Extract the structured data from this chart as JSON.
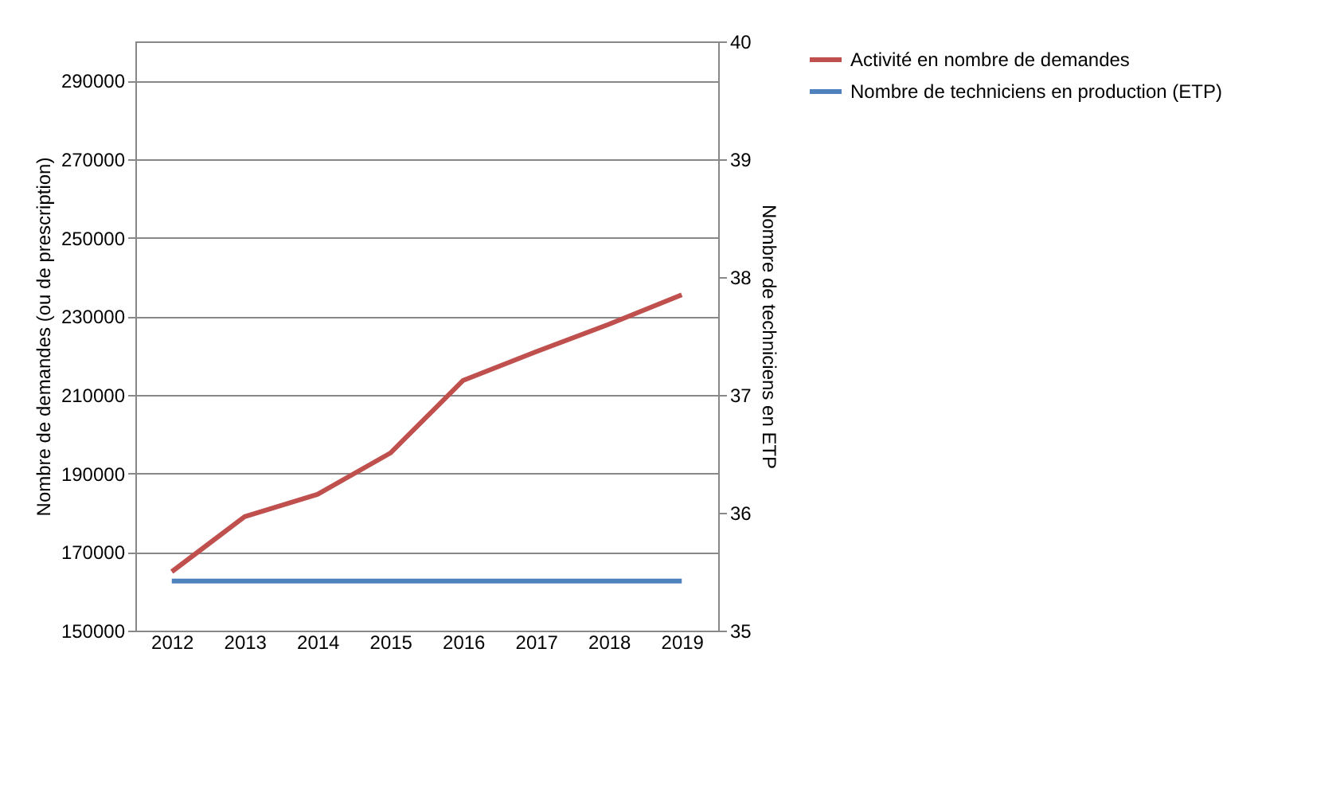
{
  "chart_data": {
    "type": "line",
    "categories": [
      "2012",
      "2013",
      "2014",
      "2015",
      "2016",
      "2017",
      "2018",
      "2019"
    ],
    "series": [
      {
        "name": "Activité en nombre de demandes",
        "color": "#c0504d",
        "values": [
          165000,
          179000,
          184700,
          195200,
          213700,
          221000,
          228000,
          235500
        ]
      },
      {
        "name": "Nombre de techniciens en production (ETP)",
        "color": "#4f81bd",
        "axis": "y2",
        "values": [
          35.42,
          35.42,
          35.42,
          35.42,
          35.42,
          35.42,
          35.42,
          35.42
        ]
      }
    ],
    "ylabel": "Nombre de demandes (ou de prescription)",
    "y2label": "Nombre de techniciens en ETP",
    "ylim": [
      150000,
      300000
    ],
    "yticks": [
      150000,
      170000,
      190000,
      210000,
      230000,
      250000,
      270000,
      290000
    ],
    "y2lim": [
      35,
      40
    ],
    "y2ticks": [
      35,
      36,
      37,
      38,
      39,
      40
    ],
    "grid": "y",
    "legend": "right",
    "marker": "none",
    "line_style": "solid"
  }
}
